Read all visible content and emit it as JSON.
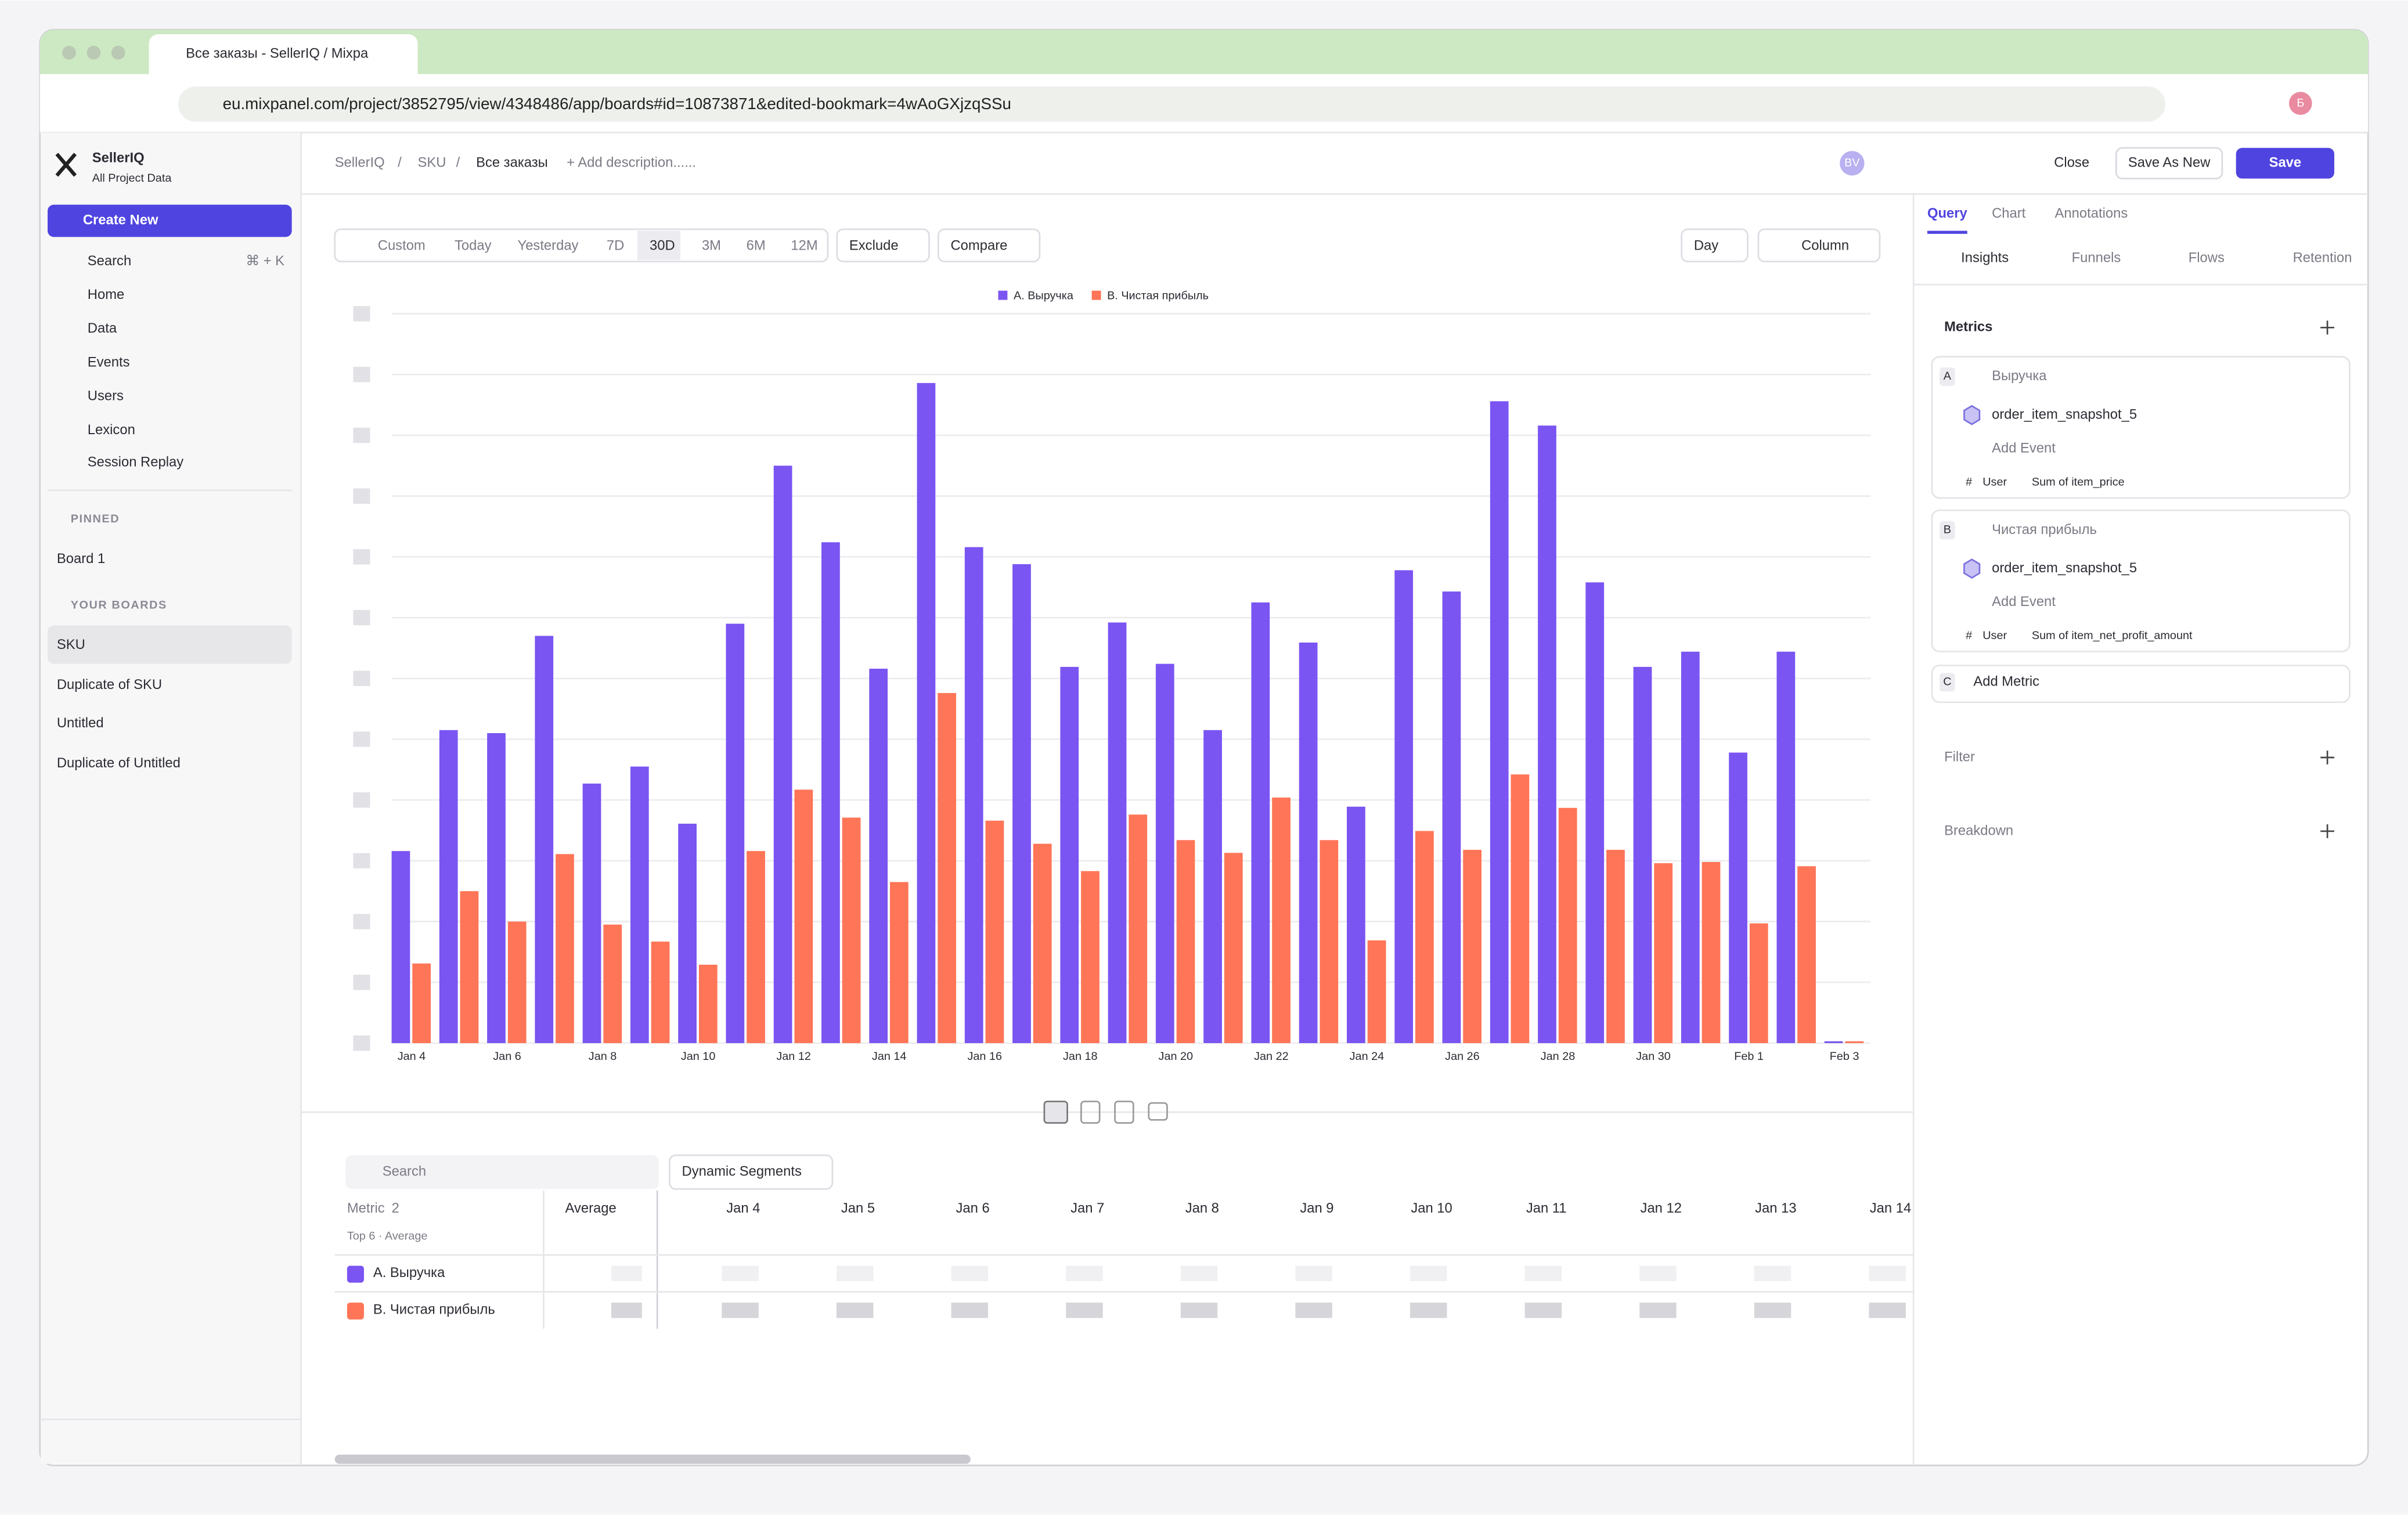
{
  "browser": {
    "tab_title": "Все заказы - SellerIQ / Mixpa",
    "url": "eu.mixpanel.com/project/3852795/view/4348486/app/boards#id=10873871&edited-bookmark=4wAoGXjzqSSu",
    "profile": "Б"
  },
  "sidebar": {
    "project": "SellerIQ",
    "project_sub": "All Project Data",
    "create_new": "Create New",
    "search": "Search",
    "search_shortcut": "⌘ + K",
    "nav": [
      "Home",
      "Data",
      "Events",
      "Users",
      "Lexicon",
      "Session Replay"
    ],
    "pinned_title": "PINNED",
    "pinned": [
      "Board 1"
    ],
    "boards_title": "YOUR BOARDS",
    "boards": [
      "SKU",
      "Duplicate of SKU",
      "Untitled",
      "Duplicate of Untitled"
    ]
  },
  "header": {
    "breadcrumbs": [
      "SellerIQ",
      "SKU",
      "Все заказы"
    ],
    "breadcrumb_separator": "/",
    "add_description": "+ Add description......",
    "avatar": "BV",
    "close": "Close",
    "save_as_new": "Save As New",
    "save": "Save"
  },
  "toolbar": {
    "ranges": [
      "Custom",
      "Today",
      "Yesterday",
      "7D",
      "30D",
      "3M",
      "6M",
      "12M"
    ],
    "selected_range": 4,
    "exclude": "Exclude",
    "compare": "Compare",
    "interval": "Day",
    "chart_type": "Column"
  },
  "chart_data": {
    "type": "bar",
    "categories": [
      "Jan 4",
      null,
      "Jan 6",
      null,
      "Jan 8",
      null,
      "Jan 10",
      null,
      "Jan 12",
      null,
      "Jan 14",
      null,
      "Jan 16",
      null,
      "Jan 18",
      null,
      "Jan 20",
      null,
      "Jan 22",
      null,
      "Jan 24",
      null,
      "Jan 26",
      null,
      "Jan 28",
      null,
      "Jan 30",
      null,
      "Feb 1",
      null,
      "Feb 3"
    ],
    "series": [
      {
        "name": "A. Выручка",
        "color": "#7a55f2",
        "values": [
          3.16,
          5.15,
          5.1,
          6.7,
          4.27,
          4.55,
          3.61,
          6.9,
          9.5,
          8.24,
          6.16,
          10.86,
          8.16,
          7.88,
          6.19,
          6.92,
          6.24,
          5.15,
          7.25,
          6.59,
          3.89,
          7.78,
          7.43,
          10.56,
          10.16,
          7.58,
          6.19,
          6.44,
          4.78,
          6.44,
          0.03
        ]
      },
      {
        "name": "B. Чистая прибыль",
        "color": "#ff7557",
        "values": [
          1.31,
          2.5,
          2.0,
          3.11,
          1.95,
          1.67,
          1.29,
          3.16,
          4.17,
          3.71,
          2.65,
          5.76,
          3.66,
          3.28,
          2.83,
          3.76,
          3.34,
          3.13,
          4.04,
          3.34,
          1.69,
          3.49,
          3.18,
          4.42,
          3.87,
          3.18,
          2.96,
          2.98,
          1.97,
          2.91,
          0.03
        ]
      }
    ],
    "ylim": [
      0,
      12
    ],
    "yticks": [
      0,
      1,
      2,
      3,
      4,
      5,
      6,
      7,
      8,
      9,
      10,
      11,
      12
    ],
    "grid": true,
    "legend": "top"
  },
  "right_panel": {
    "tabs": [
      "Query",
      "Chart",
      "Annotations"
    ],
    "report_types": [
      "Insights",
      "Funnels",
      "Flows",
      "Retention"
    ],
    "metrics_title": "Metrics",
    "metrics": [
      {
        "letter": "A",
        "name": "Выручка",
        "event": "order_item_snapshot_5",
        "add_event": "Add Event",
        "hash": "#",
        "user": "User",
        "aggregation": "Sum of item_price"
      },
      {
        "letter": "B",
        "name": "Чистая прибыль",
        "event": "order_item_snapshot_5",
        "add_event": "Add Event",
        "hash": "#",
        "user": "User",
        "aggregation": "Sum of item_net_profit_amount"
      }
    ],
    "add_metric_letter": "C",
    "add_metric": "Add Metric",
    "filter": "Filter",
    "breakdown": "Breakdown"
  },
  "table": {
    "search": "Search",
    "segments": "Dynamic Segments",
    "metric_header": "Metric",
    "metric_count": 2,
    "top": "Top 6 · Average",
    "average": "Average",
    "columns": [
      "Jan 4",
      "Jan 5",
      "Jan 6",
      "Jan 7",
      "Jan 8",
      "Jan 9",
      "Jan 10",
      "Jan 11",
      "Jan 12",
      "Jan 13",
      "Jan 14"
    ],
    "rows": [
      "A. Выручка",
      "B. Чистая прибыль"
    ]
  }
}
